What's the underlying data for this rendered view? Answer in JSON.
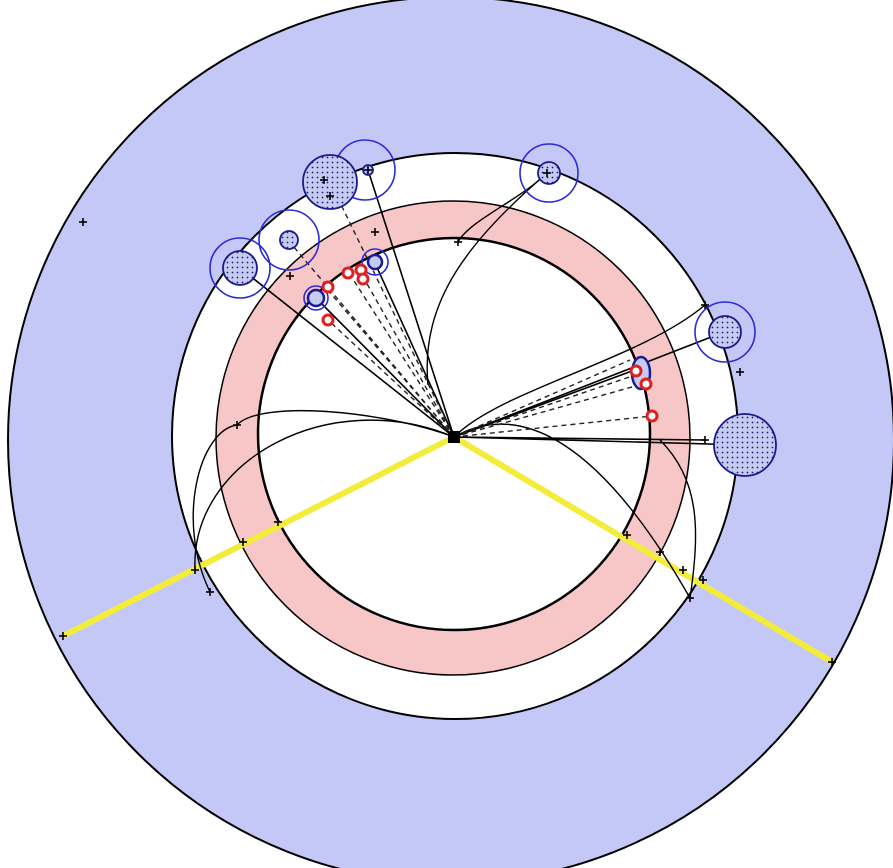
{
  "colors": {
    "outer_disk": "#c4c8f7",
    "annulus_ring": "#f7c6c6",
    "inner_disk": "#ffffff",
    "boundary": "#000000",
    "yellow_cut": "#f4ec3a",
    "blue_circle": "#2a2ad8",
    "blue_fill": "#c6cbf2",
    "red_marker": "#e02020",
    "dashed_line": "#222222"
  },
  "icons": {
    "cross_marker": "plus-marker",
    "center_node": "filled-square"
  }
}
